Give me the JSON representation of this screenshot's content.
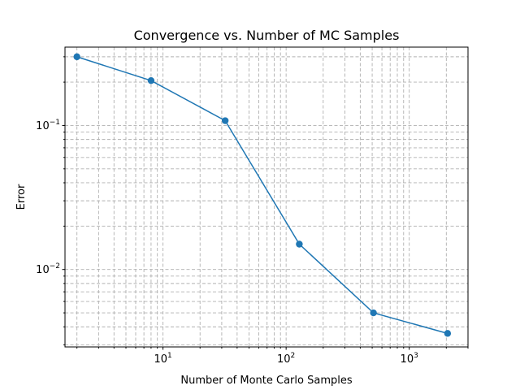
{
  "chart_data": {
    "type": "line",
    "title": "Convergence vs. Number of MC Samples",
    "xlabel": "Number of Monte Carlo Samples",
    "ylabel": "Error",
    "xscale": "log",
    "yscale": "log",
    "xlim": [
      1.6,
      3000
    ],
    "ylim": [
      0.0029,
      0.35
    ],
    "grid": "both (major and minor), dashed",
    "x_ticks": [
      {
        "base": "10",
        "exp": "1",
        "value": 10
      },
      {
        "base": "10",
        "exp": "2",
        "value": 100
      },
      {
        "base": "10",
        "exp": "3",
        "value": 1000
      }
    ],
    "y_ticks": [
      {
        "base": "10",
        "exp": "−1",
        "value": 0.1
      },
      {
        "base": "10",
        "exp": "−2",
        "value": 0.01
      }
    ],
    "series": [
      {
        "color": "#1f77b4",
        "marker": "circle",
        "x": [
          2,
          8,
          32,
          128,
          512,
          2048
        ],
        "y": [
          0.3,
          0.205,
          0.108,
          0.015,
          0.005,
          0.0036
        ]
      }
    ]
  }
}
